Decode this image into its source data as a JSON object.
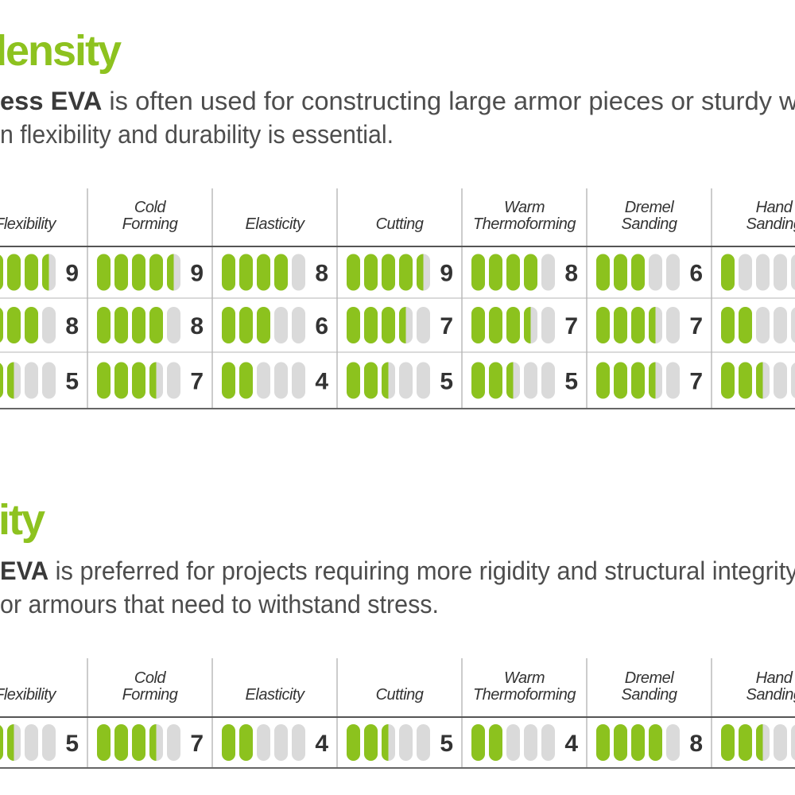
{
  "sections": [
    {
      "title": "density",
      "intro": {
        "bold": "ess EVA",
        "line1": " is often used for constructing large armor pieces or sturdy wea",
        "line2": "n flexibility and durability is essential."
      },
      "table": {
        "columns": [
          [
            "Flexibility"
          ],
          [
            "Cold",
            "Forming"
          ],
          [
            "Elasticity"
          ],
          [
            "Cutting"
          ],
          [
            "Warm",
            "Thermoforming"
          ],
          [
            "Dremel",
            "Sanding"
          ],
          [
            "Hand",
            "Sanding"
          ]
        ],
        "rows": [
          [
            9,
            9,
            8,
            9,
            8,
            6,
            2
          ],
          [
            8,
            8,
            6,
            7,
            7,
            7,
            4
          ],
          [
            5,
            7,
            4,
            5,
            5,
            7,
            5
          ]
        ]
      }
    },
    {
      "title": "sity",
      "intro": {
        "bold": "EVA",
        "line1": " is preferred for projects requiring more rigidity and structural integrity,",
        "line2": "or armours that need to withstand stress."
      },
      "table": {
        "columns": [
          [
            "Flexibility"
          ],
          [
            "Cold",
            "Forming"
          ],
          [
            "Elasticity"
          ],
          [
            "Cutting"
          ],
          [
            "Warm",
            "Thermoforming"
          ],
          [
            "Dremel",
            "Sanding"
          ],
          [
            "Hand",
            "Sanding"
          ]
        ],
        "rows": [
          [
            5,
            7,
            4,
            5,
            4,
            8,
            5
          ]
        ]
      }
    }
  ]
}
